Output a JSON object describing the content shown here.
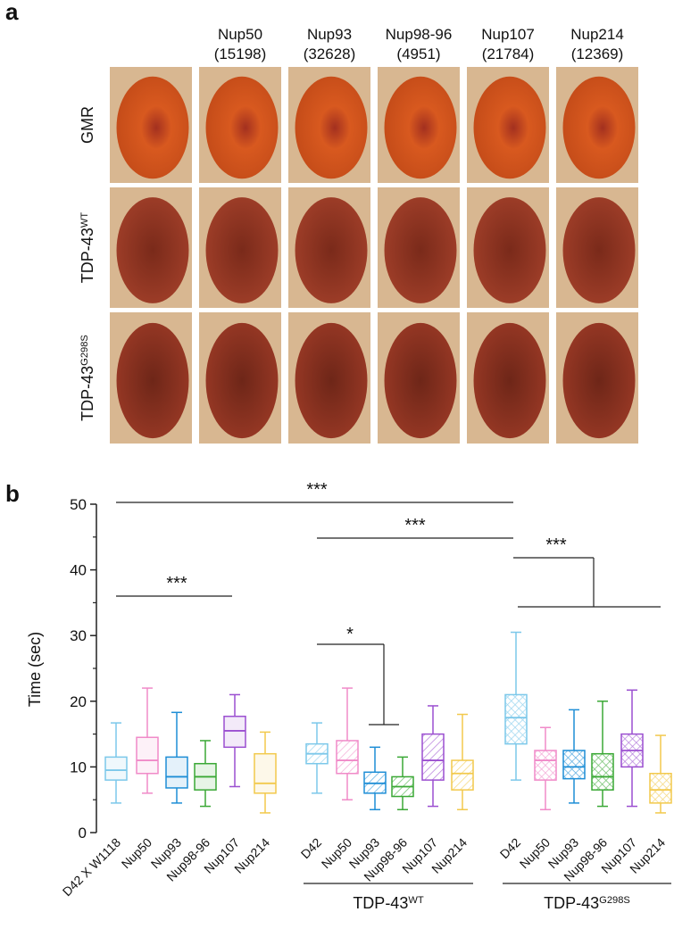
{
  "panel_a": {
    "label": "a",
    "columns": [
      {
        "name": "Nup50",
        "id": "(15198)"
      },
      {
        "name": "Nup93",
        "id": "(32628)"
      },
      {
        "name": "Nup98-96",
        "id": "(4951)"
      },
      {
        "name": "Nup107",
        "id": "(21784)"
      },
      {
        "name": "Nup214",
        "id": "(12369)"
      }
    ],
    "rows": [
      {
        "text": "GMR"
      },
      {
        "text": "TDP-43",
        "sup": "WT"
      },
      {
        "text": "TDP-43",
        "sup": "G298S"
      }
    ]
  },
  "chart_data": {
    "type": "box",
    "panel_label": "b",
    "ylabel": "Time (sec)",
    "ylim": [
      0,
      50
    ],
    "yticks": [
      0,
      10,
      20,
      30,
      40,
      50
    ],
    "groups": [
      {
        "boxes": [
          {
            "name": "D42 X W1118",
            "color": "#7cc8ea",
            "min": 4.5,
            "q1": 8,
            "median": 9.5,
            "q3": 11.5,
            "max": 16.7
          },
          {
            "name": "Nup50",
            "color": "#f08ac8",
            "min": 6,
            "q1": 9,
            "median": 11,
            "q3": 14.5,
            "max": 22
          },
          {
            "name": "Nup93",
            "color": "#1e8ed6",
            "min": 4.5,
            "q1": 6.8,
            "median": 8.5,
            "q3": 11.5,
            "max": 18.3
          },
          {
            "name": "Nup98-96",
            "color": "#3aa835",
            "min": 4,
            "q1": 6.5,
            "median": 8.5,
            "q3": 10.5,
            "max": 14
          },
          {
            "name": "Nup107",
            "color": "#9b4fd0",
            "min": 7,
            "q1": 13,
            "median": 15.5,
            "q3": 17.7,
            "max": 21
          },
          {
            "name": "Nup214",
            "color": "#f2c94c",
            "min": 3,
            "q1": 6,
            "median": 7.5,
            "q3": 12,
            "max": 15.3
          }
        ]
      },
      {
        "label": {
          "text": "TDP-43",
          "sup": "WT"
        },
        "boxes": [
          {
            "name": "D42",
            "color": "#7cc8ea",
            "min": 6,
            "q1": 10.5,
            "median": 12,
            "q3": 13.5,
            "max": 16.7
          },
          {
            "name": "Nup50",
            "color": "#f08ac8",
            "min": 5,
            "q1": 9,
            "median": 11,
            "q3": 14,
            "max": 22
          },
          {
            "name": "Nup93",
            "color": "#1e8ed6",
            "min": 3.5,
            "q1": 6,
            "median": 7.5,
            "q3": 9.2,
            "max": 13
          },
          {
            "name": "Nup98-96",
            "color": "#3aa835",
            "min": 3.5,
            "q1": 5.5,
            "median": 7,
            "q3": 8.5,
            "max": 11.5
          },
          {
            "name": "Nup107",
            "color": "#9b4fd0",
            "min": 4,
            "q1": 8,
            "median": 11,
            "q3": 15,
            "max": 19.3
          },
          {
            "name": "Nup214",
            "color": "#f2c94c",
            "min": 3.5,
            "q1": 6.5,
            "median": 9,
            "q3": 11,
            "max": 18
          }
        ]
      },
      {
        "label": {
          "text": "TDP-43",
          "sup": "G298S"
        },
        "boxes": [
          {
            "name": "D42",
            "color": "#7cc8ea",
            "min": 8,
            "q1": 13.5,
            "median": 17.5,
            "q3": 21,
            "max": 30.5
          },
          {
            "name": "Nup50",
            "color": "#f08ac8",
            "min": 3.5,
            "q1": 8,
            "median": 11,
            "q3": 12.5,
            "max": 16
          },
          {
            "name": "Nup93",
            "color": "#1e8ed6",
            "min": 4.5,
            "q1": 8.2,
            "median": 10,
            "q3": 12.5,
            "max": 18.7
          },
          {
            "name": "Nup98-96",
            "color": "#3aa835",
            "min": 4,
            "q1": 6.5,
            "median": 8.5,
            "q3": 12,
            "max": 20
          },
          {
            "name": "Nup107",
            "color": "#9b4fd0",
            "min": 4,
            "q1": 10,
            "median": 12.5,
            "q3": 15,
            "max": 21.7
          },
          {
            "name": "Nup214",
            "color": "#f2c94c",
            "min": 3,
            "q1": 4.5,
            "median": 6.5,
            "q3": 9,
            "max": 14.8
          }
        ]
      }
    ],
    "annotations": [
      "***",
      "***",
      "***",
      "*",
      "***"
    ]
  }
}
